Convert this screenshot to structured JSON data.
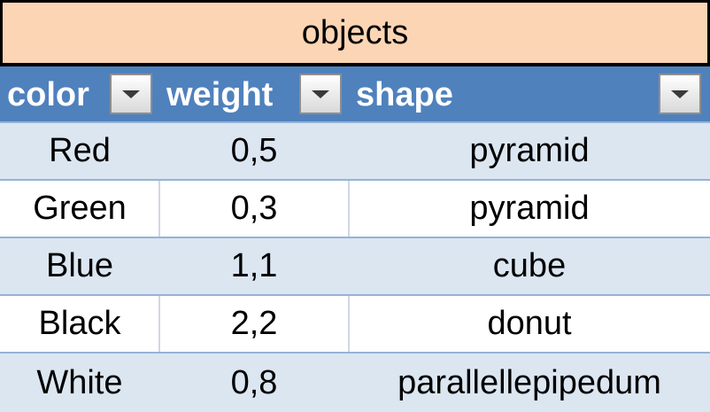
{
  "table": {
    "title": "objects",
    "headers": [
      "color",
      "weight",
      "shape"
    ],
    "rows": [
      {
        "color": "Red",
        "weight": "0,5",
        "shape": "pyramid"
      },
      {
        "color": "Green",
        "weight": "0,3",
        "shape": "pyramid"
      },
      {
        "color": "Blue",
        "weight": "1,1",
        "shape": "cube"
      },
      {
        "color": "Black",
        "weight": "2,2",
        "shape": "donut"
      },
      {
        "color": "White",
        "weight": "0,8",
        "shape": "parallellepipedum"
      }
    ],
    "filter_icon": "dropdown-arrow-icon"
  },
  "colors": {
    "title_fill": "#fcd5b4",
    "header_fill": "#4f81bd",
    "band_fill": "#dce6f1"
  }
}
